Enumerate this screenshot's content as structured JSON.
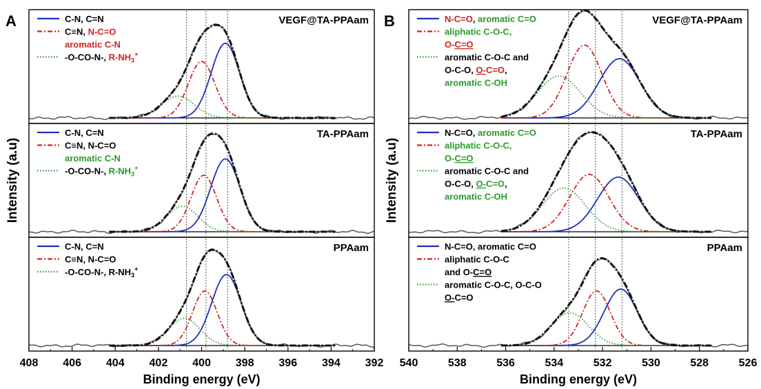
{
  "chart_data": [
    {
      "panel_letter": "A",
      "type": "line",
      "xlabel": "Binding energy (eV)",
      "ylabel": "Intensity (a.u)",
      "xlim": [
        408,
        392
      ],
      "x_ticks": [
        408,
        406,
        404,
        402,
        400,
        398,
        396,
        394,
        392
      ],
      "reference_lines": [
        400.7,
        399.8,
        398.8
      ],
      "fit_range": [
        404.3,
        393.8
      ],
      "subplots": [
        {
          "title": "VEGF@TA-PPAam",
          "legend": [
            {
              "style": "solid-blue",
              "segments": [
                {
                  "text": "C-N, C=N",
                  "color": "#000000"
                }
              ]
            },
            {
              "style": "dashdot-red",
              "segments": [
                {
                  "text": "C≡N, ",
                  "color": "#000000"
                },
                {
                  "text": "N-C=O",
                  "color": "#d42020"
                }
              ]
            },
            {
              "style": "none",
              "segments": [
                {
                  "text": "aromatic C-N",
                  "color": "#d42020"
                }
              ]
            },
            {
              "style": "dotted-green",
              "segments": [
                {
                  "text": "-O-CO-N-, ",
                  "color": "#000000"
                },
                {
                  "text": "R-NH",
                  "color": "#d42020"
                },
                {
                  "text": "3",
                  "color": "#d42020",
                  "sub": true
                },
                {
                  "text": "+",
                  "color": "#d42020",
                  "sup": true
                }
              ]
            }
          ],
          "series": [
            {
              "name": "C-N, C=N",
              "style": "solid-blue",
              "center": 398.9,
              "fwhm": 1.55,
              "height": 0.82
            },
            {
              "name": "C≡N, N-C=O, aromatic C-N",
              "style": "dashdot-red",
              "center": 400.0,
              "fwhm": 1.45,
              "height": 0.62
            },
            {
              "name": "-O-CO-N-, R-NH3+",
              "style": "dotted-green",
              "center": 401.1,
              "fwhm": 1.8,
              "height": 0.24
            }
          ]
        },
        {
          "title": "TA-PPAam",
          "legend": [
            {
              "style": "solid-blue",
              "segments": [
                {
                  "text": "C-N, C=N",
                  "color": "#000000"
                }
              ]
            },
            {
              "style": "dashdot-red",
              "segments": [
                {
                  "text": "C≡N, N-C=O",
                  "color": "#000000"
                }
              ]
            },
            {
              "style": "none",
              "segments": [
                {
                  "text": "aromatic C-N",
                  "color": "#2a9a2a"
                }
              ]
            },
            {
              "style": "dotted-green",
              "segments": [
                {
                  "text": "-O-CO-N-, ",
                  "color": "#000000"
                },
                {
                  "text": "R-NH",
                  "color": "#2a9a2a"
                },
                {
                  "text": "3",
                  "color": "#2a9a2a",
                  "sub": true
                },
                {
                  "text": "+",
                  "color": "#2a9a2a",
                  "sup": true
                }
              ]
            }
          ],
          "series": [
            {
              "name": "C-N, C=N",
              "style": "solid-blue",
              "center": 398.9,
              "fwhm": 1.6,
              "height": 0.8
            },
            {
              "name": "C≡N, N-C=O, aromatic C-N",
              "style": "dashdot-red",
              "center": 399.9,
              "fwhm": 1.4,
              "height": 0.62
            },
            {
              "name": "-O-CO-N-, R-NH3+",
              "style": "dotted-green",
              "center": 400.9,
              "fwhm": 1.7,
              "height": 0.28
            }
          ]
        },
        {
          "title": "PPAam",
          "legend": [
            {
              "style": "solid-blue",
              "segments": [
                {
                  "text": "C-N, C=N",
                  "color": "#000000"
                }
              ]
            },
            {
              "style": "dashdot-red",
              "segments": [
                {
                  "text": "C≡N, N-C=O",
                  "color": "#000000"
                }
              ]
            },
            {
              "style": "dotted-green",
              "segments": [
                {
                  "text": "-O-CO-N-, R-NH",
                  "color": "#000000"
                },
                {
                  "text": "3",
                  "color": "#000000",
                  "sub": true
                },
                {
                  "text": "+",
                  "color": "#000000",
                  "sup": true
                }
              ]
            }
          ],
          "series": [
            {
              "name": "C-N, C=N",
              "style": "solid-blue",
              "center": 398.85,
              "fwhm": 1.6,
              "height": 0.78
            },
            {
              "name": "C≡N, N-C=O",
              "style": "dashdot-red",
              "center": 399.85,
              "fwhm": 1.35,
              "height": 0.6
            },
            {
              "name": "-O-CO-N-, R-NH3+",
              "style": "dotted-green",
              "center": 400.8,
              "fwhm": 1.7,
              "height": 0.3
            }
          ]
        }
      ]
    },
    {
      "panel_letter": "B",
      "type": "line",
      "xlabel": "Binding energy (eV)",
      "ylabel": "Intensity (a.u)",
      "xlim": [
        540,
        526
      ],
      "x_ticks": [
        540,
        538,
        536,
        534,
        532,
        530,
        528,
        526
      ],
      "reference_lines": [
        533.4,
        532.3,
        531.2
      ],
      "fit_range": [
        536.2,
        527.5
      ],
      "subplots": [
        {
          "title": "VEGF@TA-PPAam",
          "legend": [
            {
              "style": "solid-blue",
              "segments": [
                {
                  "text": "N-C=O",
                  "color": "#d42020"
                },
                {
                  "text": ", ",
                  "color": "#000000"
                },
                {
                  "text": "aromatic C=O",
                  "color": "#2a9a2a"
                }
              ]
            },
            {
              "style": "dashdot-red",
              "segments": [
                {
                  "text": "aliphatic C-O-C,",
                  "color": "#2a9a2a"
                }
              ]
            },
            {
              "style": "none",
              "segments": [
                {
                  "text": "O-",
                  "color": "#d42020"
                },
                {
                  "text": "C=O",
                  "color": "#d42020",
                  "underline": true
                }
              ]
            },
            {
              "style": "dotted-green",
              "segments": [
                {
                  "text": "aromatic C-O-C and",
                  "color": "#000000"
                }
              ]
            },
            {
              "style": "none",
              "segments": [
                {
                  "text": "O-C-O, ",
                  "color": "#000000"
                },
                {
                  "text": "O-",
                  "color": "#d42020",
                  "underline": true
                },
                {
                  "text": "C=O",
                  "color": "#d42020"
                },
                {
                  "text": ",",
                  "color": "#000000"
                }
              ]
            },
            {
              "style": "none",
              "segments": [
                {
                  "text": "aromatic C-OH",
                  "color": "#2a9a2a"
                }
              ]
            }
          ],
          "series": [
            {
              "name": "N-C=O, aromatic C=O",
              "style": "solid-blue",
              "center": 531.3,
              "fwhm": 2.0,
              "height": 0.65
            },
            {
              "name": "aliphatic C-O-C, O-C=O",
              "style": "dashdot-red",
              "center": 532.75,
              "fwhm": 1.7,
              "height": 0.8
            },
            {
              "name": "aromatic C-O-C and O-C-O, O-C=O, aromatic C-OH",
              "style": "dotted-green",
              "center": 533.8,
              "fwhm": 2.1,
              "height": 0.46
            }
          ]
        },
        {
          "title": "TA-PPAam",
          "legend": [
            {
              "style": "solid-blue",
              "segments": [
                {
                  "text": "N-C=O, ",
                  "color": "#000000"
                },
                {
                  "text": "aromatic C=O",
                  "color": "#2a9a2a"
                }
              ]
            },
            {
              "style": "dashdot-red",
              "segments": [
                {
                  "text": "aliphatic C-O-C,",
                  "color": "#2a9a2a"
                }
              ]
            },
            {
              "style": "none",
              "segments": [
                {
                  "text": "O-",
                  "color": "#2a9a2a"
                },
                {
                  "text": "C=O",
                  "color": "#2a9a2a",
                  "underline": true
                }
              ]
            },
            {
              "style": "dotted-green",
              "segments": [
                {
                  "text": "aromatic C-O-C and",
                  "color": "#000000"
                }
              ]
            },
            {
              "style": "none",
              "segments": [
                {
                  "text": "O-C-O, ",
                  "color": "#000000"
                },
                {
                  "text": "O-",
                  "color": "#2a9a2a",
                  "underline": true
                },
                {
                  "text": "C=O",
                  "color": "#2a9a2a"
                },
                {
                  "text": ",",
                  "color": "#000000"
                }
              ]
            },
            {
              "style": "none",
              "segments": [
                {
                  "text": "aromatic C-OH",
                  "color": "#2a9a2a"
                }
              ]
            }
          ],
          "series": [
            {
              "name": "N-C=O, aromatic C=O",
              "style": "solid-blue",
              "center": 531.35,
              "fwhm": 2.0,
              "height": 0.6
            },
            {
              "name": "aliphatic C-O-C, O-C=O",
              "style": "dashdot-red",
              "center": 532.55,
              "fwhm": 1.9,
              "height": 0.63
            },
            {
              "name": "aromatic C-O-C and O-C-O, O-C=O, aromatic C-OH",
              "style": "dotted-green",
              "center": 533.6,
              "fwhm": 2.1,
              "height": 0.48
            }
          ]
        },
        {
          "title": "PPAam",
          "legend": [
            {
              "style": "solid-blue",
              "segments": [
                {
                  "text": "N-C=O, aromatic C=O",
                  "color": "#000000"
                }
              ]
            },
            {
              "style": "dashdot-red",
              "segments": [
                {
                  "text": "aliphatic C-O-C",
                  "color": "#000000"
                }
              ]
            },
            {
              "style": "none",
              "segments": [
                {
                  "text": "and O-",
                  "color": "#000000"
                },
                {
                  "text": "C=O",
                  "color": "#000000",
                  "underline": true
                }
              ]
            },
            {
              "style": "dotted-green",
              "segments": [
                {
                  "text": "aromatic C-O-C, O-C-O",
                  "color": "#000000"
                }
              ]
            },
            {
              "style": "none",
              "segments": [
                {
                  "text": "O-",
                  "color": "#000000",
                  "underline": true
                },
                {
                  "text": "C=O",
                  "color": "#000000"
                }
              ]
            }
          ],
          "series": [
            {
              "name": "N-C=O, aromatic C=O",
              "style": "solid-blue",
              "center": 531.25,
              "fwhm": 1.6,
              "height": 0.62
            },
            {
              "name": "aliphatic C-O-C and O-C=O",
              "style": "dashdot-red",
              "center": 532.25,
              "fwhm": 1.35,
              "height": 0.6
            },
            {
              "name": "aromatic C-O-C, O-C-O, O-C=O",
              "style": "dotted-green",
              "center": 533.35,
              "fwhm": 1.8,
              "height": 0.36
            }
          ]
        }
      ]
    }
  ],
  "colors": {
    "blue": "#1f2fbf",
    "red": "#d42020",
    "green": "#2a9a2a",
    "data": "#555555",
    "envelope": "#111111",
    "frame": "#000000",
    "refline": "#555555"
  }
}
